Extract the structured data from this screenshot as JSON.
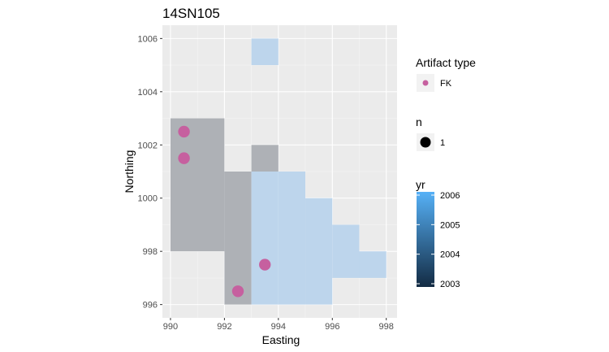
{
  "chart_data": {
    "type": "heatmap",
    "title": "14SN105",
    "xlabel": "Easting",
    "ylabel": "Northing",
    "xlim": [
      989.7,
      998.4
    ],
    "ylim": [
      995.5,
      1006.5
    ],
    "x_ticks": [
      990,
      992,
      994,
      996,
      998
    ],
    "y_ticks": [
      996,
      998,
      1000,
      1002,
      1004,
      1006
    ],
    "grid": true,
    "tiles": [
      {
        "xmin": 990,
        "xmax": 992,
        "ymin": 998,
        "ymax": 1003,
        "yr": 2003
      },
      {
        "xmin": 992,
        "xmax": 993,
        "ymin": 996,
        "ymax": 1001,
        "yr": 2003
      },
      {
        "xmin": 993,
        "xmax": 994,
        "ymin": 1001,
        "ymax": 1002,
        "yr": 2003
      },
      {
        "xmin": 993,
        "xmax": 994,
        "ymin": 996,
        "ymax": 1001,
        "yr": 2006
      },
      {
        "xmin": 994,
        "xmax": 995,
        "ymin": 996,
        "ymax": 1001,
        "yr": 2006
      },
      {
        "xmin": 995,
        "xmax": 996,
        "ymin": 996,
        "ymax": 1000,
        "yr": 2006
      },
      {
        "xmin": 996,
        "xmax": 997,
        "ymin": 997,
        "ymax": 999,
        "yr": 2006
      },
      {
        "xmin": 997,
        "xmax": 998,
        "ymin": 997,
        "ymax": 998,
        "yr": 2006
      },
      {
        "xmin": 993,
        "xmax": 994,
        "ymin": 1005,
        "ymax": 1006,
        "yr": 2006
      }
    ],
    "points": [
      {
        "x": 990.5,
        "y": 1002.5,
        "type": "FK",
        "n": 1
      },
      {
        "x": 990.5,
        "y": 1001.5,
        "type": "FK",
        "n": 1
      },
      {
        "x": 993.5,
        "y": 997.5,
        "type": "FK",
        "n": 1
      },
      {
        "x": 992.5,
        "y": 996.5,
        "type": "FK",
        "n": 1
      }
    ],
    "legend": {
      "placement": "right",
      "artifact": {
        "title": "Artifact type",
        "entries": [
          {
            "label": "FK",
            "color": "#c6609f"
          }
        ]
      },
      "n": {
        "title": "n",
        "entries": [
          {
            "label": "1"
          }
        ]
      },
      "yr": {
        "title": "yr",
        "labels": [
          "2006",
          "2005",
          "2004",
          "2003"
        ],
        "range": [
          2003,
          2006
        ],
        "color_low": "#132b43",
        "color_high": "#56b1f7"
      }
    }
  },
  "colors": {
    "panel": "#ebebeb",
    "grid_major": "#ffffff",
    "tile_old": "#aeb1b6",
    "tile_new": "#bdd5ec",
    "point": "#c6609f"
  }
}
